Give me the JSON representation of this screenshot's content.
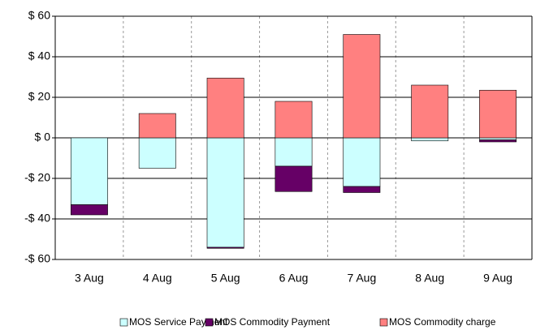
{
  "chart_data": {
    "type": "bar",
    "stacked": true,
    "categories": [
      "3 Aug",
      "4 Aug",
      "5 Aug",
      "6 Aug",
      "7 Aug",
      "8 Aug",
      "9 Aug"
    ],
    "series": [
      {
        "name": "MOS Service Payment",
        "color": "#ccffff",
        "values": [
          -33,
          -15,
          -54,
          -14,
          -24,
          -1.5,
          -1
        ]
      },
      {
        "name": "MOS Commodity Payment",
        "color": "#660066",
        "values": [
          -5,
          0,
          -0.5,
          -12.5,
          -3,
          0,
          -1
        ]
      },
      {
        "name": "MOS Commodity charge",
        "color": "#ff8080",
        "values": [
          0,
          12,
          29.5,
          18,
          51,
          26,
          23.5
        ]
      }
    ],
    "ylim": [
      -60,
      60
    ],
    "yticks": [
      {
        "value": -60,
        "label": "-$ 60"
      },
      {
        "value": -40,
        "label": "-$ 40"
      },
      {
        "value": -20,
        "label": "-$ 20"
      },
      {
        "value": 0,
        "label": "$ 0"
      },
      {
        "value": 20,
        "label": "$ 20"
      },
      {
        "value": 40,
        "label": "$ 40"
      },
      {
        "value": 60,
        "label": "$ 60"
      }
    ],
    "grid": true,
    "legend": "bottom"
  }
}
